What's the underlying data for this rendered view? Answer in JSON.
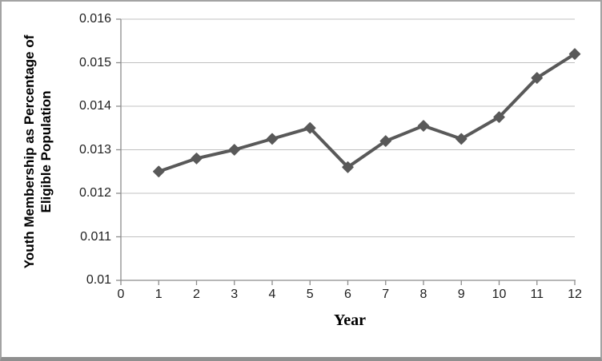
{
  "chart_data": {
    "type": "line",
    "title": "",
    "xlabel": "Year",
    "ylabel": "Youth Membership as Percentage of Eligible Population",
    "ylabel_lines": [
      "Youth Membership as Percentage of",
      "Eligible Population"
    ],
    "x": [
      1,
      2,
      3,
      4,
      5,
      6,
      7,
      8,
      9,
      10,
      11,
      12
    ],
    "values": [
      0.0125,
      0.0128,
      0.013,
      0.01325,
      0.0135,
      0.0126,
      0.0132,
      0.01355,
      0.01325,
      0.01375,
      0.01465,
      0.0152
    ],
    "xlim": [
      0,
      12
    ],
    "ylim": [
      0.01,
      0.016
    ],
    "xticks": [
      0,
      1,
      2,
      3,
      4,
      5,
      6,
      7,
      8,
      9,
      10,
      11,
      12
    ],
    "xtick_labels": [
      "0",
      "1",
      "2",
      "3",
      "4",
      "5",
      "6",
      "7",
      "8",
      "9",
      "10",
      "11",
      "12"
    ],
    "yticks": [
      0.01,
      0.011,
      0.012,
      0.013,
      0.014,
      0.015,
      0.016
    ],
    "ytick_labels": [
      "0.01",
      "0.011",
      "0.012",
      "0.013",
      "0.014",
      "0.015",
      "0.016"
    ],
    "grid": "horizontal",
    "legend": "none",
    "marker": "diamond",
    "colors": {
      "series": "#595959",
      "gridline": "#c0c0c0",
      "axis": "#8c8c8c",
      "tick_text": "#1f1f1f",
      "frame_border": "#a3a3a3",
      "frame_border_bottom": "#8f8f8f"
    }
  }
}
